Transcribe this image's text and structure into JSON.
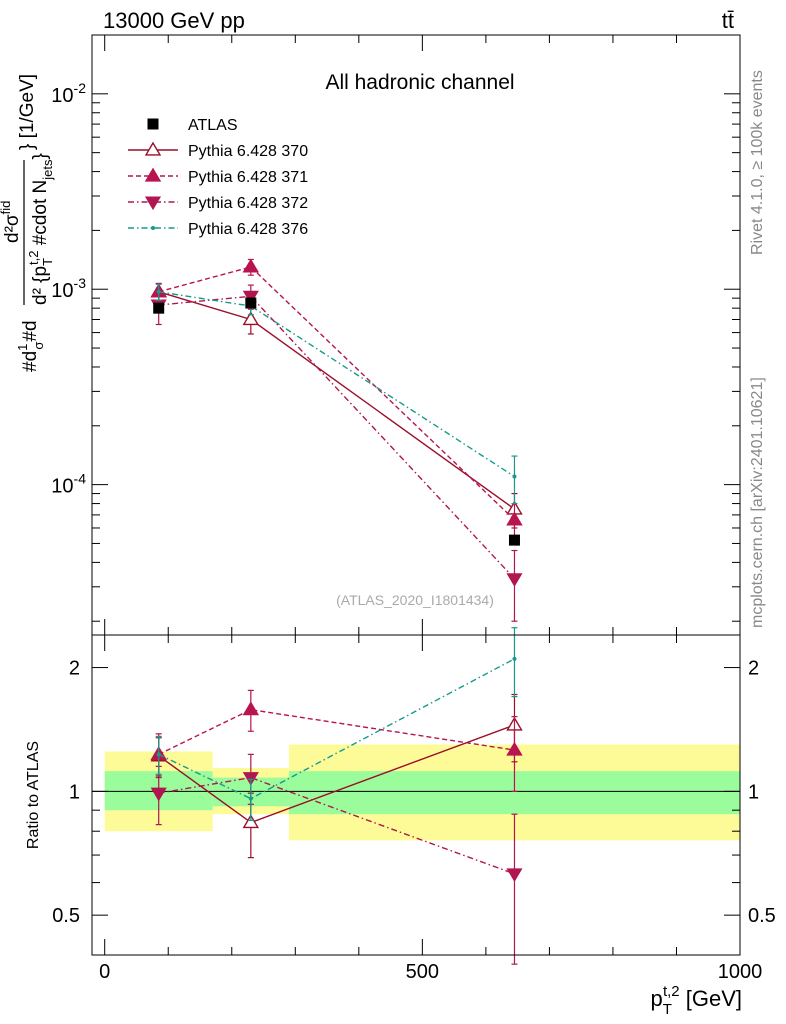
{
  "header": {
    "left": "13000 GeV pp",
    "right": "tt̄"
  },
  "side_labels": {
    "rivet": "Rivet 4.1.0, ≥ 100k events",
    "mcplots": "mcplots.cern.ch [arXiv:2401.10621]"
  },
  "chart_data": {
    "type": "scatter",
    "title": "All hadronic channel",
    "analysis_label": "(ATLAS_2020_I1801434)",
    "xlabel": "p_T^{t,2} [GeV]",
    "ylabel_main": "#d1/σ#d d²σ^{fid}/d² {p_T^{t,2} #cdot N_jets} [1/GeV]",
    "ylabel_ratio": "Ratio to ATLAS",
    "xlim": [
      -20,
      1000
    ],
    "ylim_main": [
      1.7e-05,
      0.02
    ],
    "ylim_ratio": [
      0.4,
      2.4
    ],
    "yscale_main": "log",
    "yscale_ratio": "log",
    "x_ticks": [
      "0",
      "500",
      "1000"
    ],
    "y_ticks_main": [
      "10^-2",
      "10^-3",
      "10^-4"
    ],
    "y_ticks_ratio": [
      "0.5",
      "1",
      "2"
    ],
    "bins": [
      [
        0,
        170
      ],
      [
        170,
        290
      ],
      [
        290,
        1000
      ]
    ],
    "data": {
      "name": "ATLAS",
      "x": [
        85,
        230,
        645
      ],
      "y": [
        0.0008,
        0.00085,
        5.2e-05
      ],
      "band_inner": [
        [
          0.9,
          1.12
        ],
        [
          0.92,
          1.08
        ],
        [
          0.88,
          1.12
        ]
      ],
      "band_outer": [
        [
          0.8,
          1.25
        ],
        [
          0.88,
          1.14
        ],
        [
          0.76,
          1.3
        ]
      ]
    },
    "series": [
      {
        "name": "Pythia 6.428 370",
        "color": "#9b0f2a",
        "dash": "",
        "marker": "triangle-up-open",
        "x": [
          85,
          230,
          645
        ],
        "y": [
          0.00097,
          0.0007,
          7.5e-05
        ],
        "y_err": [
          [
            0.00087,
            0.00107
          ],
          [
            0.00059,
            0.00081
          ],
          [
            6e-05,
            9e-05
          ]
        ],
        "ratio": [
          1.22,
          0.84,
          1.45
        ],
        "ratio_err": [
          [
            1.09,
            1.35
          ],
          [
            0.69,
            0.99
          ],
          [
            1.18,
            1.72
          ]
        ]
      },
      {
        "name": "Pythia 6.428 371",
        "color": "#b8144f",
        "dash": "5,3",
        "marker": "triangle-up",
        "x": [
          85,
          230,
          645
        ],
        "y": [
          0.00097,
          0.0013,
          6.6e-05
        ],
        "y_err": [
          [
            0.00087,
            0.00107
          ],
          [
            0.00118,
            0.00142
          ],
          [
            5.2e-05,
            8e-05
          ]
        ],
        "ratio": [
          1.23,
          1.58,
          1.26
        ],
        "ratio_err": [
          [
            1.08,
            1.38
          ],
          [
            1.4,
            1.76
          ],
          [
            1.0,
            1.52
          ]
        ]
      },
      {
        "name": "Pythia 6.428 372",
        "color": "#b01650",
        "dash": "6,3,1.5,3",
        "marker": "triangle-down",
        "x": [
          85,
          230,
          645
        ],
        "y": [
          0.00083,
          0.00092,
          3.3e-05
        ],
        "y_err": [
          [
            0.00066,
            0.001
          ],
          [
            0.00079,
            0.00105
          ],
          [
            2e-05,
            4.6e-05
          ]
        ],
        "ratio": [
          0.99,
          1.08,
          0.63
        ],
        "ratio_err": [
          [
            0.83,
            1.15
          ],
          [
            0.93,
            1.23
          ],
          [
            0.38,
            0.88
          ]
        ]
      },
      {
        "name": "Pythia 6.428 376",
        "color": "#189a8c",
        "dash": "6,3,1.5,3",
        "marker": "dot",
        "x": [
          85,
          230,
          645
        ],
        "y": [
          0.00097,
          0.00082,
          0.00011
        ],
        "y_err": [
          [
            0.00088,
            0.00106
          ],
          [
            0.00074,
            0.0009
          ],
          [
            8e-05,
            0.00014
          ]
        ],
        "ratio": [
          1.23,
          0.96,
          2.1
        ],
        "ratio_err": [
          [
            1.1,
            1.36
          ],
          [
            0.85,
            1.07
          ],
          [
            1.7,
            2.5
          ]
        ]
      }
    ]
  }
}
